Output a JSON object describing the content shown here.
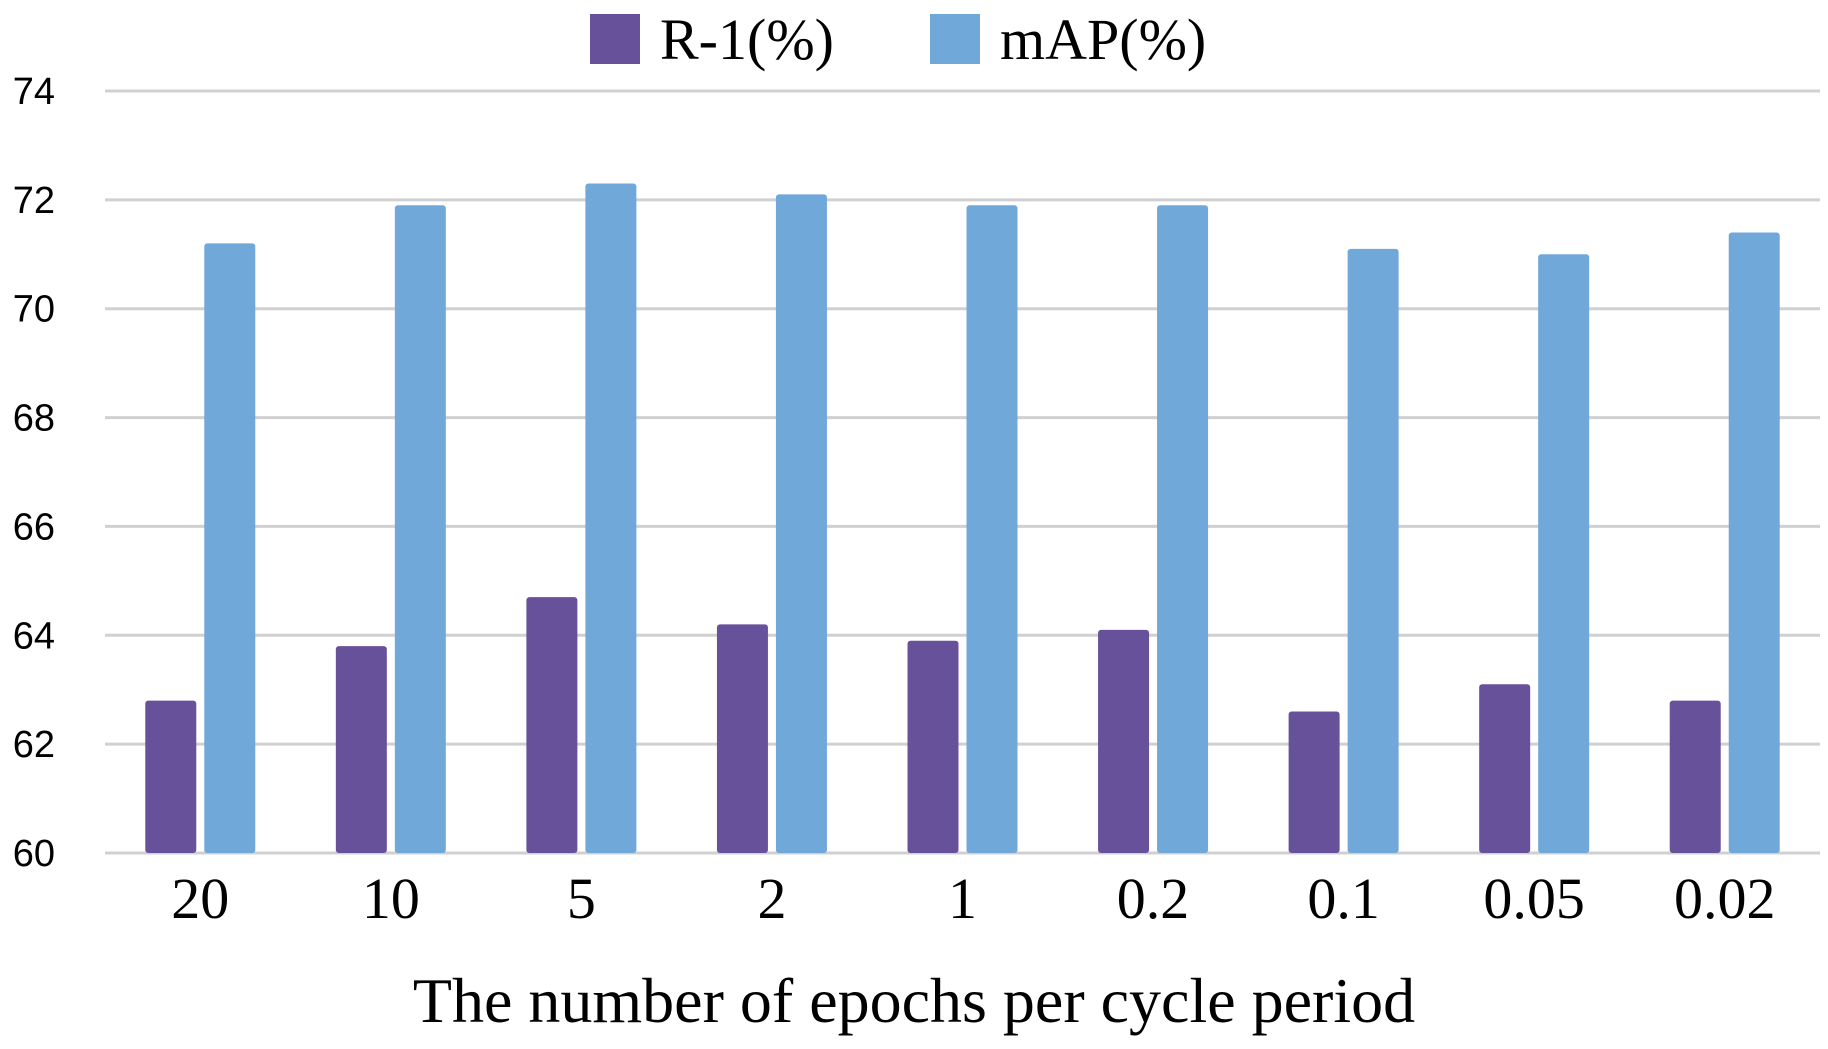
{
  "chart_data": {
    "type": "bar",
    "title": "",
    "xlabel": "The number of epochs per cycle period",
    "ylabel": "",
    "categories": [
      "20",
      "10",
      "5",
      "2",
      "1",
      "0.2",
      "0.1",
      "0.05",
      "0.02"
    ],
    "series": [
      {
        "name": "R-1(%)",
        "color": "#68519b",
        "values": [
          62.8,
          63.8,
          64.7,
          64.2,
          63.9,
          64.1,
          62.6,
          63.1,
          62.8
        ]
      },
      {
        "name": "mAP(%)",
        "color": "#70a8da",
        "values": [
          71.2,
          71.9,
          72.3,
          72.1,
          71.9,
          71.9,
          71.1,
          71.0,
          71.4
        ]
      }
    ],
    "ylim": [
      60,
      74
    ],
    "yticks": [
      "60",
      "62",
      "64",
      "66",
      "68",
      "70",
      "72",
      "74"
    ],
    "grid": true,
    "legend_position": "top-center"
  }
}
